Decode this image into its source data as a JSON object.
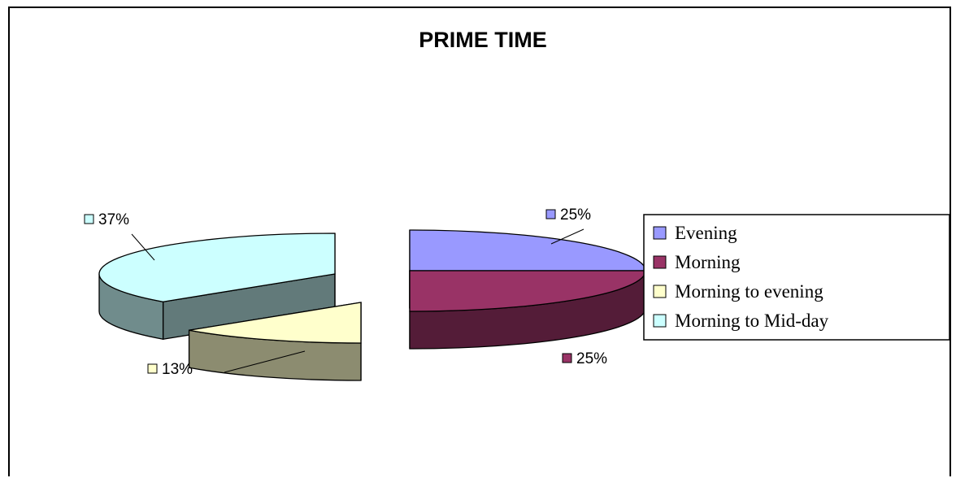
{
  "chart_data": {
    "type": "pie",
    "title": "PRIME TIME",
    "categories": [
      "Evening",
      "Morning",
      "Morning to evening",
      "Morning to Mid-day"
    ],
    "values": [
      25,
      25,
      13,
      37
    ],
    "data_labels": [
      "25%",
      "25%",
      "13%",
      "37%"
    ],
    "legend_position": "right",
    "exploded": true,
    "three_d": true,
    "colors": {
      "Evening": "#9999ff",
      "Morning": "#993366",
      "Morning to evening": "#ffffcc",
      "Morning to Mid-day": "#ccffff"
    }
  }
}
